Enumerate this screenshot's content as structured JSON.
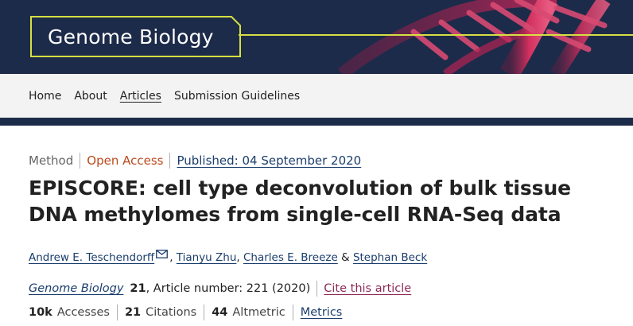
{
  "header": {
    "journal_title": "Genome Biology",
    "colors": {
      "banner_bg": "#1d2b4a",
      "logo_border": "#d6df42",
      "dna": "#c8285a"
    }
  },
  "nav": {
    "items": [
      {
        "label": "Home"
      },
      {
        "label": "About"
      },
      {
        "label": "Articles",
        "active": true
      },
      {
        "label": "Submission Guidelines"
      }
    ]
  },
  "article": {
    "type": "Method",
    "access": "Open Access",
    "published": "Published: 04 September 2020",
    "title": "EPISCORE: cell type deconvolution of bulk tissue DNA methylomes from single-cell RNA-Seq data",
    "authors": [
      {
        "name": "Andrew E. Teschendorff",
        "icon": "envelope-icon"
      },
      {
        "name": "Tianyu Zhu"
      },
      {
        "name": "Charles E. Breeze"
      },
      {
        "name": "Stephan Beck"
      }
    ],
    "author_separators": [
      ",",
      ",",
      "&"
    ],
    "citation": {
      "journal": "Genome Biology",
      "volume": "21",
      "article_number": ", Article number: 221 (2020)",
      "cite_label": "Cite this article"
    },
    "metrics": {
      "accesses_value": "10k",
      "accesses_label": "Accesses",
      "citations_value": "21",
      "citations_label": "Citations",
      "altmetric_value": "44",
      "altmetric_label": "Altmetric",
      "metrics_link": "Metrics"
    }
  }
}
